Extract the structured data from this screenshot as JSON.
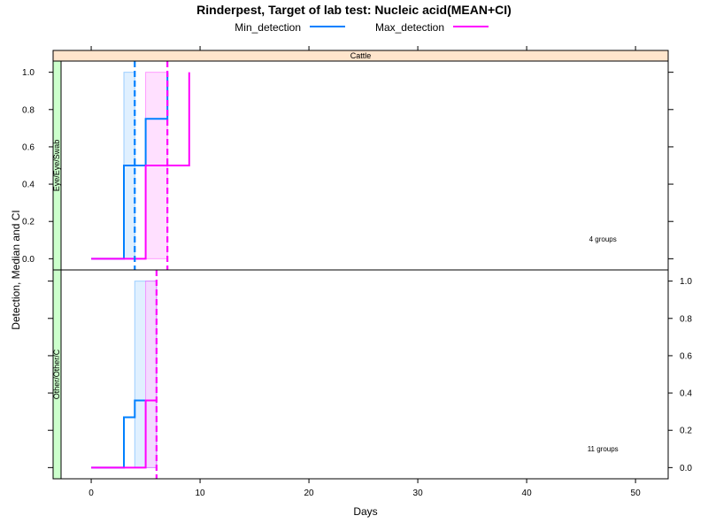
{
  "chart_data": {
    "type": "line",
    "title": "Rinderpest, Target of lab test: Nucleic acid(MEAN+CI)",
    "xlabel": "Days",
    "ylabel": "Detection, Median and CI",
    "xlim": [
      -3.5,
      53
    ],
    "x_ticks": [
      0,
      10,
      20,
      30,
      40,
      50
    ],
    "ylim": [
      -0.06,
      1.06
    ],
    "y_ticks": [
      0.0,
      0.2,
      0.4,
      0.6,
      0.8,
      1.0
    ],
    "y_tick_labels": [
      "0.0",
      "0.2",
      "0.4",
      "0.6",
      "0.8",
      "1.0"
    ],
    "legend_position": "top",
    "column_strip": "Cattle",
    "colors": {
      "Min_detection": "#0080ff",
      "Max_detection": "#ff00ff",
      "Min_ci": "#cce6ff",
      "Max_ci": "#ffccff",
      "strip_top": "#ffe5cc",
      "strip_side": "#ccffcc"
    },
    "series": [
      {
        "name": "Min_detection"
      },
      {
        "name": "Max_detection"
      }
    ],
    "panels": [
      {
        "strip": "Eye/Eye/Swab",
        "note": "4 groups",
        "y_axis_side": "left",
        "lines": [
          {
            "series": "Min_detection",
            "x": [
              0,
              3,
              3,
              5,
              5,
              7,
              7
            ],
            "y": [
              0,
              0,
              0.5,
              0.5,
              0.75,
              0.75,
              1.0
            ]
          },
          {
            "series": "Max_detection",
            "x": [
              0,
              5,
              5,
              9,
              9
            ],
            "y": [
              0,
              0,
              0.5,
              0.5,
              1.0
            ]
          }
        ],
        "ci_bands": [
          {
            "series": "Min_detection",
            "x_from": 3,
            "x_to": 4,
            "y_from": 0,
            "y_to": 1.0
          },
          {
            "series": "Max_detection",
            "x_from": 5,
            "x_to": 7,
            "y_from": 0,
            "y_to": 1.0
          }
        ],
        "medians": [
          {
            "series": "Min_detection",
            "x": 4
          },
          {
            "series": "Max_detection",
            "x": 7
          }
        ]
      },
      {
        "strip": "Other/Other/C",
        "note": "11 groups",
        "y_axis_side": "right",
        "lines": [
          {
            "series": "Min_detection",
            "x": [
              0,
              3,
              3,
              4,
              4,
              6
            ],
            "y": [
              0,
              0,
              0.27,
              0.27,
              0.36,
              0.36
            ]
          },
          {
            "series": "Max_detection",
            "x": [
              0,
              5,
              5,
              6
            ],
            "y": [
              0,
              0,
              0.36,
              0.36
            ]
          }
        ],
        "ci_bands": [
          {
            "series": "Min_detection",
            "x_from": 4,
            "x_to": 6,
            "y_from": 0,
            "y_to": 1.0
          },
          {
            "series": "Max_detection",
            "x_from": 5,
            "x_to": 6,
            "y_from": 0,
            "y_to": 1.0
          }
        ],
        "medians": [
          {
            "series": "Max_detection",
            "x": 6
          }
        ]
      }
    ]
  }
}
